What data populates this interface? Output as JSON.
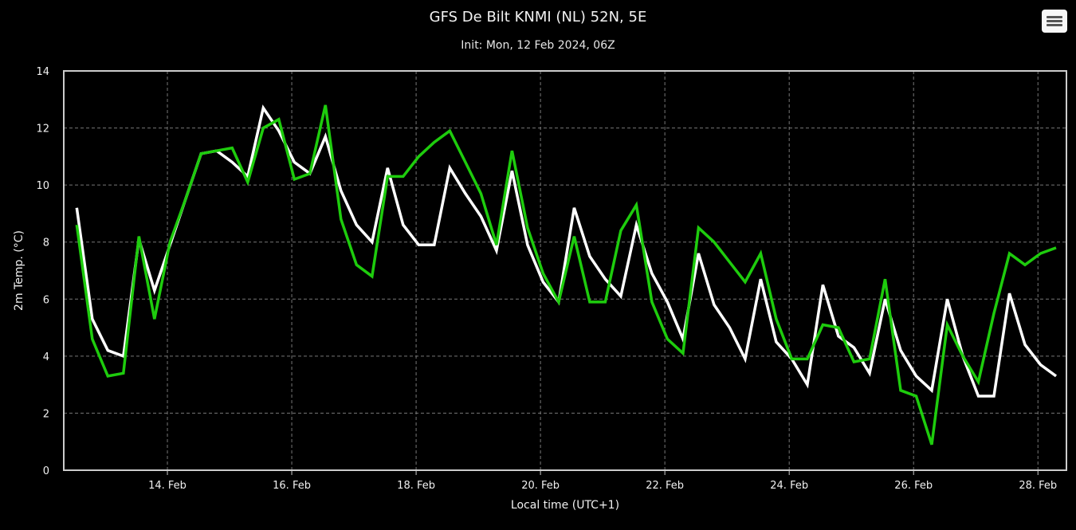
{
  "chart_data": {
    "type": "line",
    "title": "GFS De Bilt KNMI (NL) 52N, 5E",
    "subtitle": "Init: Mon, 12 Feb 2024, 06Z",
    "xlabel": "Local time (UTC+1)",
    "ylabel": "2m Temp. (°C)",
    "ylim": [
      0,
      14
    ],
    "yticks": [
      0,
      2,
      4,
      6,
      8,
      10,
      12,
      14
    ],
    "xlim": [
      "2024-02-12T08:00",
      "2024-02-28T11:00"
    ],
    "xticks": [
      {
        "date": "2024-02-14T00:00",
        "label": "14. Feb"
      },
      {
        "date": "2024-02-16T00:00",
        "label": "16. Feb"
      },
      {
        "date": "2024-02-18T00:00",
        "label": "18. Feb"
      },
      {
        "date": "2024-02-20T00:00",
        "label": "20. Feb"
      },
      {
        "date": "2024-02-22T00:00",
        "label": "22. Feb"
      },
      {
        "date": "2024-02-24T00:00",
        "label": "24. Feb"
      },
      {
        "date": "2024-02-26T00:00",
        "label": "26. Feb"
      },
      {
        "date": "2024-02-28T00:00",
        "label": "28. Feb"
      }
    ],
    "grid": true,
    "series": [
      {
        "color": "#ffffff",
        "points": [
          [
            "2024-02-12T13:00",
            9.2
          ],
          [
            "2024-02-12T19:00",
            5.3
          ],
          [
            "2024-02-13T01:00",
            4.2
          ],
          [
            "2024-02-13T07:00",
            4.0
          ],
          [
            "2024-02-13T13:00",
            8.1
          ],
          [
            "2024-02-13T19:00",
            6.3
          ],
          [
            "2024-02-14T01:00",
            7.9
          ],
          [
            "2024-02-14T07:00",
            9.5
          ],
          [
            "2024-02-14T13:00",
            11.1
          ],
          [
            "2024-02-14T19:00",
            11.2
          ],
          [
            "2024-02-15T01:00",
            10.8
          ],
          [
            "2024-02-15T07:00",
            10.3
          ],
          [
            "2024-02-15T13:00",
            12.7
          ],
          [
            "2024-02-15T19:00",
            11.9
          ],
          [
            "2024-02-16T01:00",
            10.8
          ],
          [
            "2024-02-16T07:00",
            10.4
          ],
          [
            "2024-02-16T13:00",
            11.7
          ],
          [
            "2024-02-16T19:00",
            9.8
          ],
          [
            "2024-02-17T01:00",
            8.6
          ],
          [
            "2024-02-17T07:00",
            8.0
          ],
          [
            "2024-02-17T13:00",
            10.6
          ],
          [
            "2024-02-17T19:00",
            8.6
          ],
          [
            "2024-02-18T01:00",
            7.9
          ],
          [
            "2024-02-18T07:00",
            7.9
          ],
          [
            "2024-02-18T13:00",
            10.6
          ],
          [
            "2024-02-18T19:00",
            9.7
          ],
          [
            "2024-02-19T01:00",
            8.9
          ],
          [
            "2024-02-19T07:00",
            7.7
          ],
          [
            "2024-02-19T13:00",
            10.5
          ],
          [
            "2024-02-19T19:00",
            7.9
          ],
          [
            "2024-02-20T01:00",
            6.6
          ],
          [
            "2024-02-20T07:00",
            5.9
          ],
          [
            "2024-02-20T13:00",
            9.2
          ],
          [
            "2024-02-20T19:00",
            7.5
          ],
          [
            "2024-02-21T01:00",
            6.7
          ],
          [
            "2024-02-21T07:00",
            6.1
          ],
          [
            "2024-02-21T13:00",
            8.6
          ],
          [
            "2024-02-21T19:00",
            6.9
          ],
          [
            "2024-02-22T01:00",
            5.9
          ],
          [
            "2024-02-22T07:00",
            4.6
          ],
          [
            "2024-02-22T13:00",
            7.6
          ],
          [
            "2024-02-22T19:00",
            5.8
          ],
          [
            "2024-02-23T01:00",
            5.0
          ],
          [
            "2024-02-23T07:00",
            3.9
          ],
          [
            "2024-02-23T13:00",
            6.7
          ],
          [
            "2024-02-23T19:00",
            4.5
          ],
          [
            "2024-02-24T01:00",
            3.9
          ],
          [
            "2024-02-24T07:00",
            3.0
          ],
          [
            "2024-02-24T13:00",
            6.5
          ],
          [
            "2024-02-24T19:00",
            4.7
          ],
          [
            "2024-02-25T01:00",
            4.3
          ],
          [
            "2024-02-25T07:00",
            3.4
          ],
          [
            "2024-02-25T13:00",
            6.0
          ],
          [
            "2024-02-25T19:00",
            4.2
          ],
          [
            "2024-02-26T01:00",
            3.3
          ],
          [
            "2024-02-26T07:00",
            2.8
          ],
          [
            "2024-02-26T13:00",
            6.0
          ],
          [
            "2024-02-26T19:00",
            4.0
          ],
          [
            "2024-02-27T01:00",
            2.6
          ],
          [
            "2024-02-27T07:00",
            2.6
          ],
          [
            "2024-02-27T13:00",
            6.2
          ],
          [
            "2024-02-27T19:00",
            4.4
          ],
          [
            "2024-02-28T01:00",
            3.7
          ],
          [
            "2024-02-28T07:00",
            3.3
          ]
        ]
      },
      {
        "color": "#1ecc0d",
        "points": [
          [
            "2024-02-12T13:00",
            8.6
          ],
          [
            "2024-02-12T19:00",
            4.6
          ],
          [
            "2024-02-13T01:00",
            3.3
          ],
          [
            "2024-02-13T07:00",
            3.4
          ],
          [
            "2024-02-13T13:00",
            8.2
          ],
          [
            "2024-02-13T19:00",
            5.3
          ],
          [
            "2024-02-14T01:00",
            8.0
          ],
          [
            "2024-02-14T07:00",
            9.5
          ],
          [
            "2024-02-14T13:00",
            11.1
          ],
          [
            "2024-02-14T19:00",
            11.2
          ],
          [
            "2024-02-15T01:00",
            11.3
          ],
          [
            "2024-02-15T07:00",
            10.1
          ],
          [
            "2024-02-15T13:00",
            12.0
          ],
          [
            "2024-02-15T19:00",
            12.3
          ],
          [
            "2024-02-16T01:00",
            10.2
          ],
          [
            "2024-02-16T07:00",
            10.4
          ],
          [
            "2024-02-16T13:00",
            12.8
          ],
          [
            "2024-02-16T19:00",
            8.8
          ],
          [
            "2024-02-17T01:00",
            7.2
          ],
          [
            "2024-02-17T07:00",
            6.8
          ],
          [
            "2024-02-17T13:00",
            10.3
          ],
          [
            "2024-02-17T19:00",
            10.3
          ],
          [
            "2024-02-18T01:00",
            11.0
          ],
          [
            "2024-02-18T07:00",
            11.5
          ],
          [
            "2024-02-18T13:00",
            11.9
          ],
          [
            "2024-02-18T19:00",
            10.8
          ],
          [
            "2024-02-19T01:00",
            9.7
          ],
          [
            "2024-02-19T07:00",
            7.9
          ],
          [
            "2024-02-19T13:00",
            11.2
          ],
          [
            "2024-02-19T19:00",
            8.5
          ],
          [
            "2024-02-20T01:00",
            6.9
          ],
          [
            "2024-02-20T07:00",
            5.9
          ],
          [
            "2024-02-20T13:00",
            8.2
          ],
          [
            "2024-02-20T19:00",
            5.9
          ],
          [
            "2024-02-21T01:00",
            5.9
          ],
          [
            "2024-02-21T07:00",
            8.4
          ],
          [
            "2024-02-21T13:00",
            9.3
          ],
          [
            "2024-02-21T19:00",
            5.9
          ],
          [
            "2024-02-22T01:00",
            4.6
          ],
          [
            "2024-02-22T07:00",
            4.1
          ],
          [
            "2024-02-22T13:00",
            8.5
          ],
          [
            "2024-02-22T19:00",
            8.0
          ],
          [
            "2024-02-23T01:00",
            7.3
          ],
          [
            "2024-02-23T07:00",
            6.6
          ],
          [
            "2024-02-23T13:00",
            7.6
          ],
          [
            "2024-02-23T19:00",
            5.3
          ],
          [
            "2024-02-24T01:00",
            3.9
          ],
          [
            "2024-02-24T07:00",
            3.9
          ],
          [
            "2024-02-24T13:00",
            5.1
          ],
          [
            "2024-02-24T19:00",
            5.0
          ],
          [
            "2024-02-25T01:00",
            3.8
          ],
          [
            "2024-02-25T07:00",
            3.9
          ],
          [
            "2024-02-25T13:00",
            6.7
          ],
          [
            "2024-02-25T19:00",
            2.8
          ],
          [
            "2024-02-26T01:00",
            2.6
          ],
          [
            "2024-02-26T07:00",
            0.9
          ],
          [
            "2024-02-26T13:00",
            5.1
          ],
          [
            "2024-02-26T19:00",
            4.0
          ],
          [
            "2024-02-27T01:00",
            3.1
          ],
          [
            "2024-02-27T07:00",
            5.5
          ],
          [
            "2024-02-27T13:00",
            7.6
          ],
          [
            "2024-02-27T19:00",
            7.2
          ],
          [
            "2024-02-28T01:00",
            7.6
          ],
          [
            "2024-02-28T07:00",
            7.8
          ]
        ]
      }
    ]
  },
  "menu": {
    "icon": "hamburger-menu-icon"
  }
}
